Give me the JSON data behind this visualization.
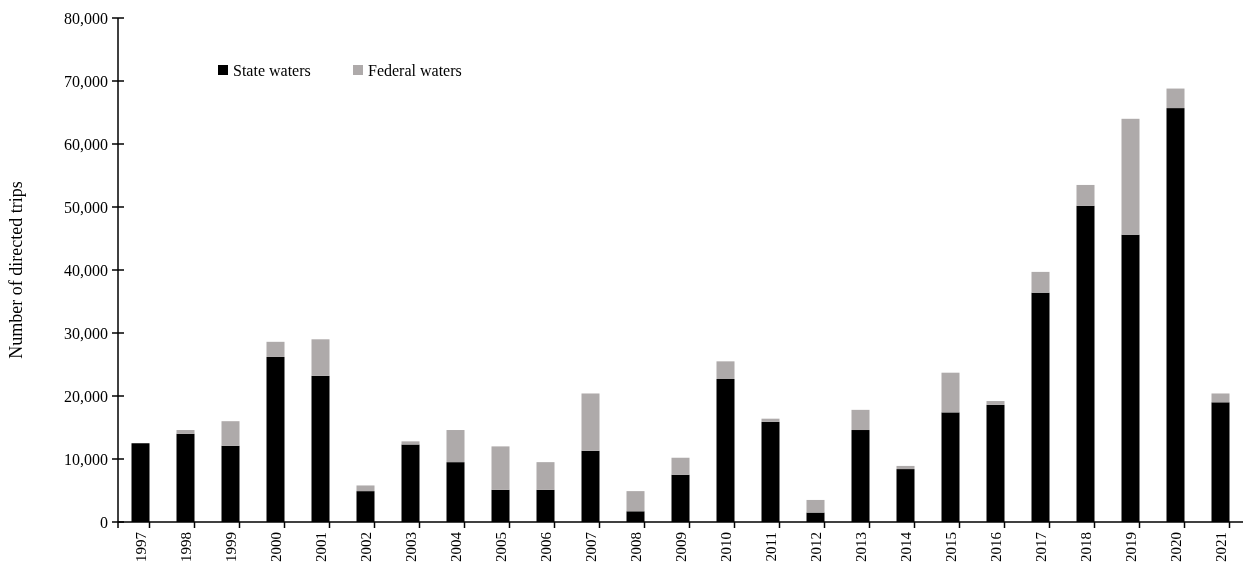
{
  "chart_data": {
    "type": "bar",
    "stacked": true,
    "ylabel": "Number of directed trips",
    "categories": [
      "1997",
      "1998",
      "1999",
      "2000",
      "2001",
      "2002",
      "2003",
      "2004",
      "2005",
      "2006",
      "2007",
      "2008",
      "2009",
      "2010",
      "2011",
      "2012",
      "2013",
      "2014",
      "2015",
      "2016",
      "2017",
      "2018",
      "2019",
      "2020",
      "2021"
    ],
    "series": [
      {
        "name": "State waters",
        "color": "#000000",
        "values": [
          12500,
          14000,
          12100,
          26200,
          23200,
          4900,
          12300,
          9500,
          5100,
          5100,
          11300,
          1700,
          7500,
          22700,
          15900,
          1500,
          14600,
          8400,
          17400,
          18600,
          36400,
          50200,
          45600,
          65700,
          19000
        ]
      },
      {
        "name": "Federal waters",
        "color": "#aeaaaa",
        "values": [
          0,
          600,
          3900,
          2400,
          5800,
          900,
          500,
          5100,
          6900,
          4400,
          9100,
          3200,
          2700,
          2800,
          500,
          2000,
          3200,
          500,
          6300,
          600,
          3300,
          3300,
          18400,
          3100,
          1400
        ]
      }
    ],
    "ylim": [
      0,
      80000
    ],
    "yticks": [
      {
        "value": 0,
        "label": "0"
      },
      {
        "value": 10000,
        "label": "10,000"
      },
      {
        "value": 20000,
        "label": "20,000"
      },
      {
        "value": 30000,
        "label": "30,000"
      },
      {
        "value": 40000,
        "label": "40,000"
      },
      {
        "value": 50000,
        "label": "50,000"
      },
      {
        "value": 60000,
        "label": "60,000"
      },
      {
        "value": 70000,
        "label": "70,000"
      },
      {
        "value": 80000,
        "label": "80,000"
      }
    ],
    "grid": false,
    "legend": "top left"
  }
}
